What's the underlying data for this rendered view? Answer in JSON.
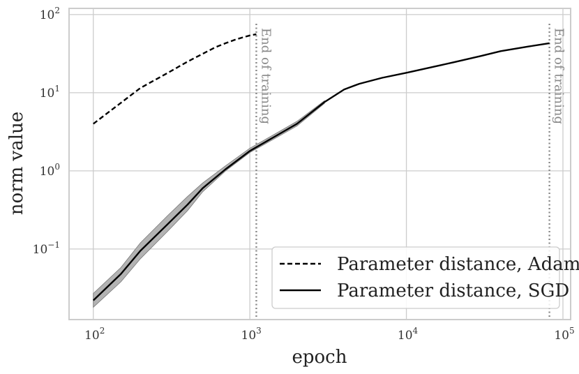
{
  "chart_data": {
    "type": "line",
    "xlabel": "epoch",
    "ylabel": "norm value",
    "xscale": "log",
    "yscale": "log",
    "xlim": [
      70,
      112000
    ],
    "ylim": [
      0.0125,
      120
    ],
    "grid": true,
    "legend_placement": "lower-right",
    "x_ticks": [
      {
        "value": 100,
        "base": "10",
        "exp": "2"
      },
      {
        "value": 1000,
        "base": "10",
        "exp": "3"
      },
      {
        "value": 10000,
        "base": "10",
        "exp": "4"
      },
      {
        "value": 100000,
        "base": "10",
        "exp": "5"
      }
    ],
    "y_ticks": [
      {
        "value": 0.1,
        "base": "10",
        "exp": "−1"
      },
      {
        "value": 1,
        "base": "10",
        "exp": "0"
      },
      {
        "value": 10,
        "base": "10",
        "exp": "1"
      },
      {
        "value": 100,
        "base": "10",
        "exp": "2"
      }
    ],
    "series": [
      {
        "name": "Parameter distance, Adam",
        "style": "dashed",
        "color": "#000000",
        "x": [
          100,
          200,
          300,
          400,
          500,
          600,
          700,
          800,
          900,
          1000,
          1100
        ],
        "y": [
          4.0,
          11.5,
          18.0,
          25.0,
          31.5,
          38.0,
          43.0,
          47.5,
          51.0,
          54.0,
          56.0
        ]
      },
      {
        "name": "Parameter distance, SGD",
        "style": "solid",
        "color": "#000000",
        "x": [
          100,
          150,
          200,
          300,
          400,
          500,
          700,
          1000,
          1400,
          2000,
          3000,
          4000,
          5000,
          7000,
          10000,
          15000,
          20000,
          30000,
          40000,
          60000,
          82000
        ],
        "y": [
          0.022,
          0.048,
          0.095,
          0.21,
          0.37,
          0.6,
          1.05,
          1.8,
          2.65,
          4.0,
          7.6,
          11.0,
          13.0,
          15.5,
          18.0,
          21.5,
          24.5,
          29.5,
          34.0,
          39.0,
          43.0
        ],
        "band_low": [
          0.018,
          0.038,
          0.075,
          0.17,
          0.31,
          0.54,
          1.0,
          1.72,
          2.5,
          3.75,
          7.3
        ],
        "band_high": [
          0.027,
          0.058,
          0.12,
          0.27,
          0.47,
          0.7,
          1.16,
          1.95,
          2.85,
          4.3,
          7.9
        ]
      }
    ],
    "annotations": [
      {
        "x": 1100,
        "text": "End of training"
      },
      {
        "x": 82000,
        "text": "End of training"
      }
    ]
  },
  "colors": {
    "grid": "#cccccc",
    "frame": "#cccccc",
    "band": "#b3b3b3",
    "annotation_line": "#888888",
    "line": "#000000"
  }
}
